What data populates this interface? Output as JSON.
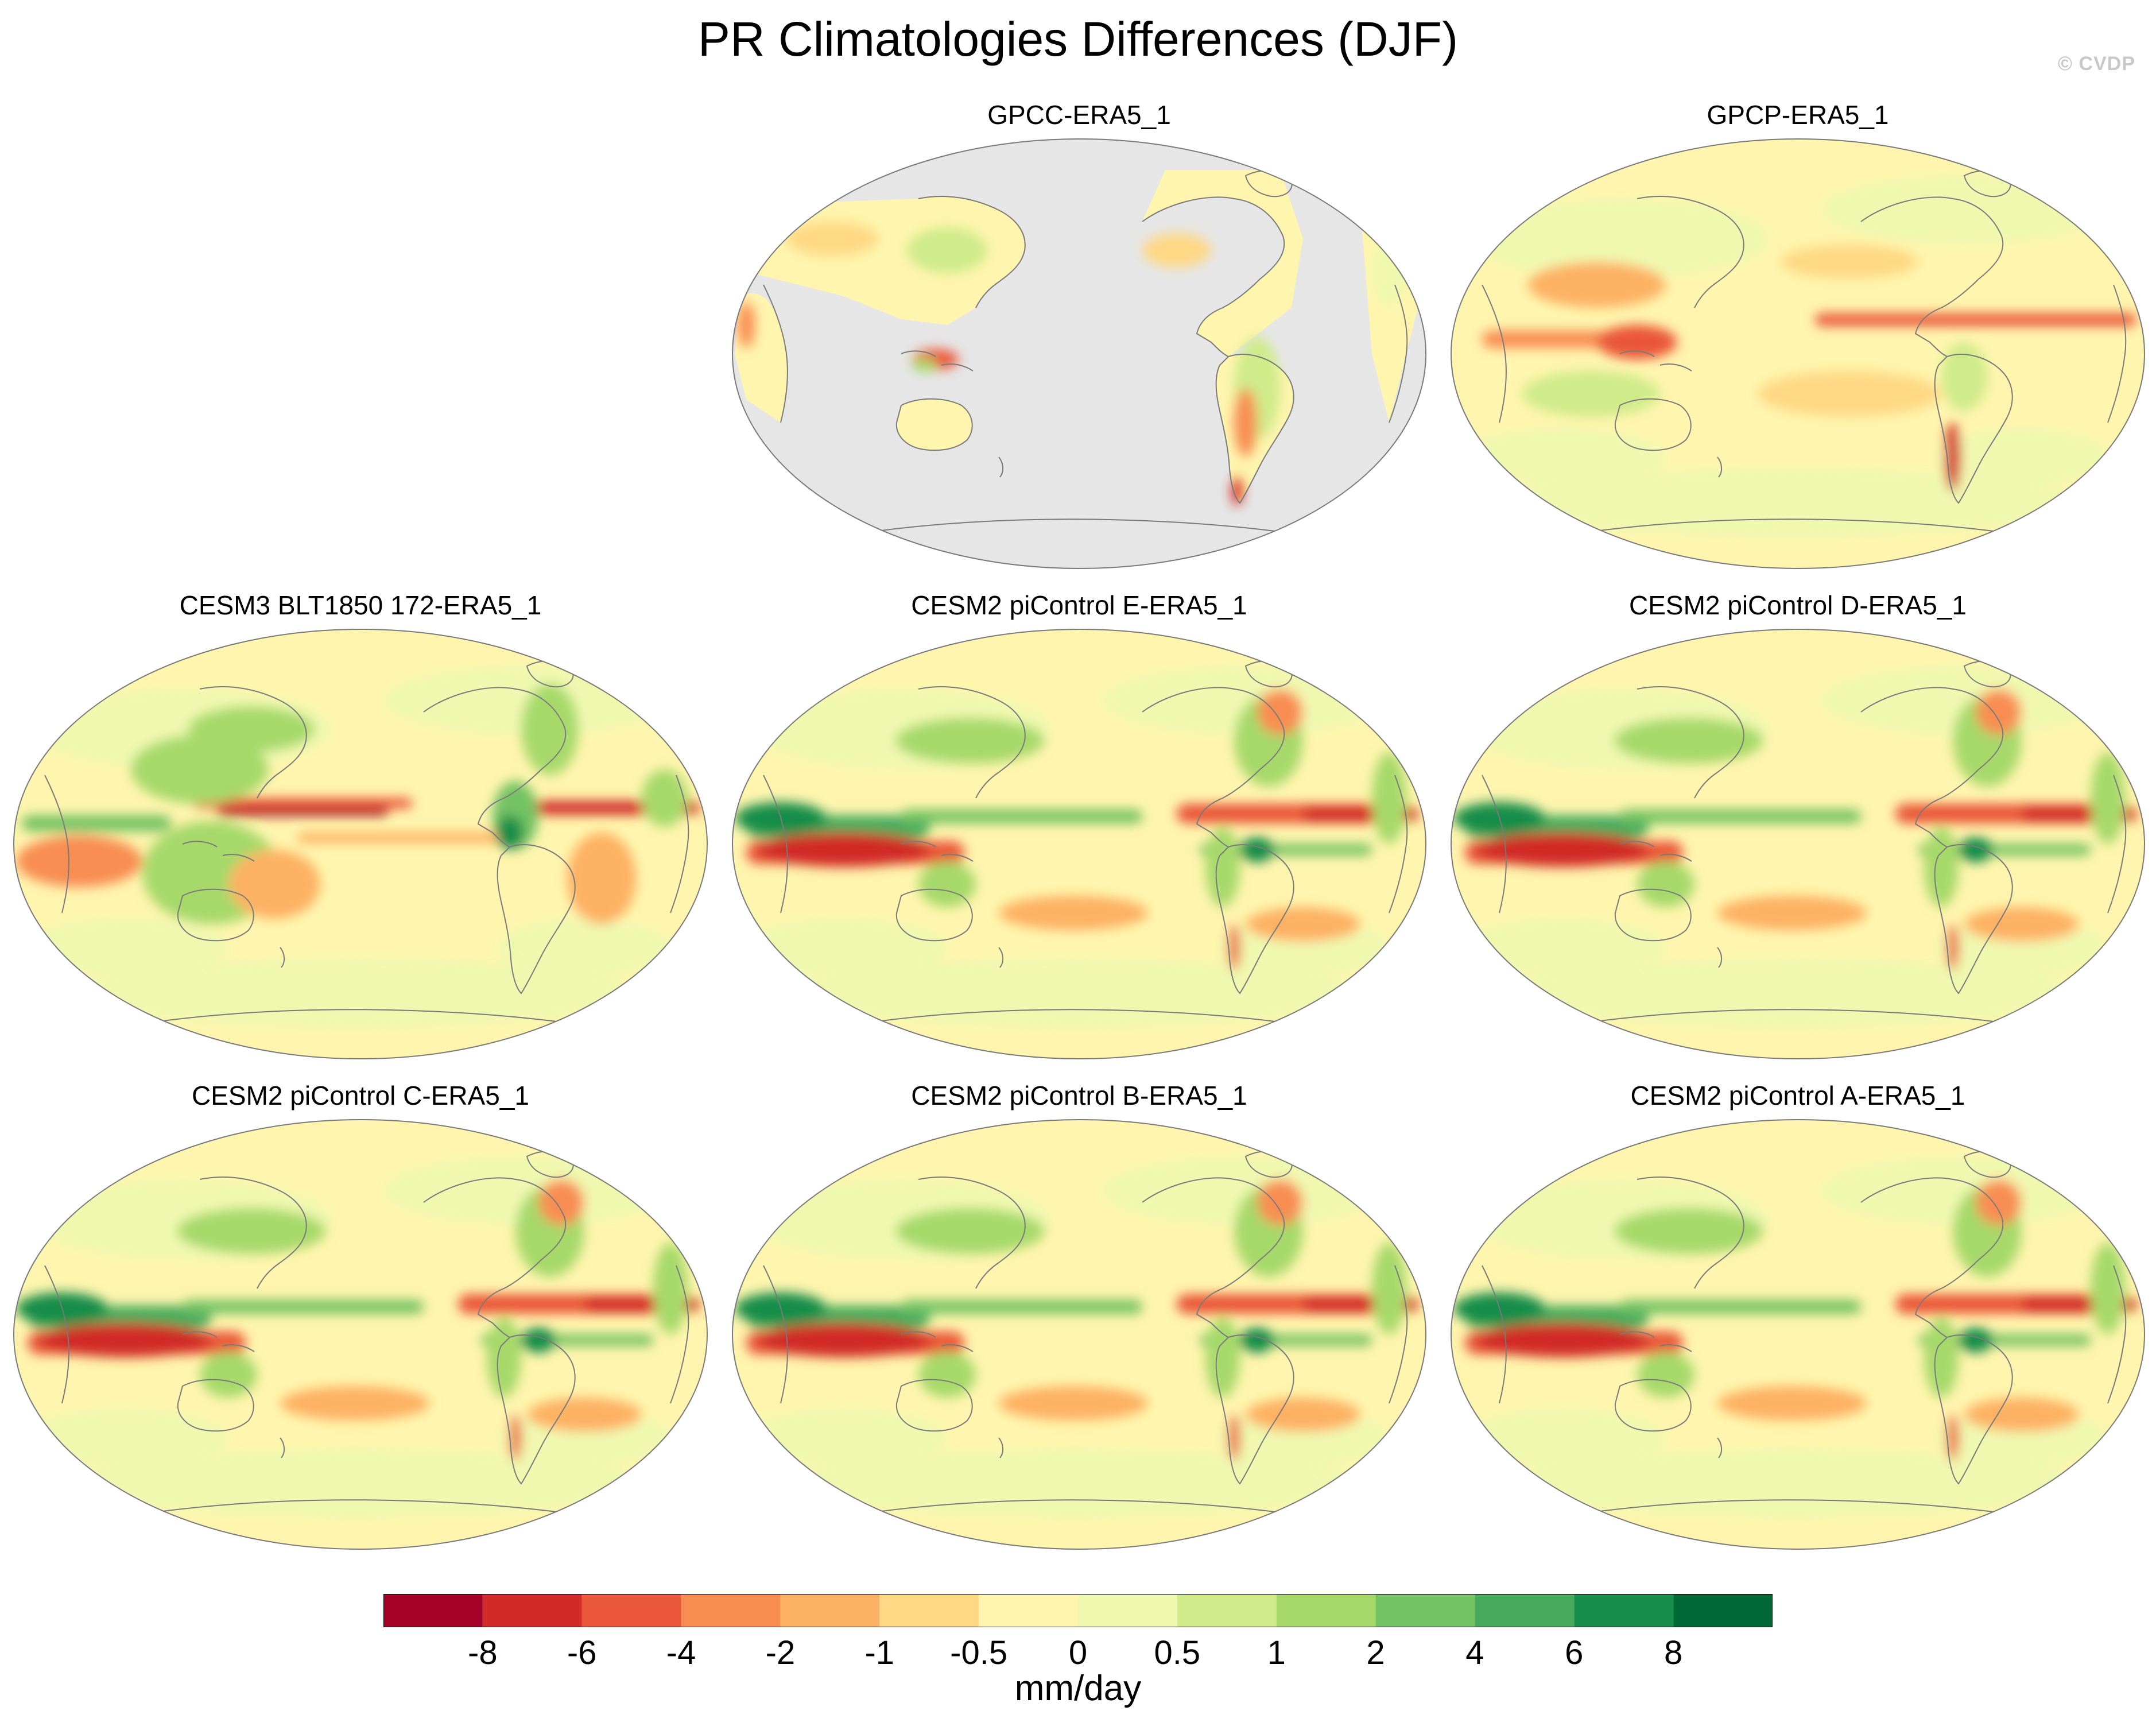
{
  "title": "PR Climatologies Differences (DJF)",
  "credit": "© CVDP",
  "colors": {
    "sea_nodata": "#e6e6e6",
    "coast": "#7a7a7a",
    "frame": "#7a7a7a",
    "neutral_plus": "#eaf4a6",
    "neutral_minus": "#fef0a8"
  },
  "panels": [
    {
      "id": "gpcc",
      "title": "GPCC-ERA5_1",
      "type": "land_only"
    },
    {
      "id": "gpcp",
      "title": "GPCP-ERA5_1",
      "type": "obs"
    },
    {
      "id": "cesm3",
      "title": "CESM3 BLT1850 172-ERA5_1",
      "type": "model_cesm3"
    },
    {
      "id": "cesm2e",
      "title": "CESM2 piControl E-ERA5_1",
      "type": "model"
    },
    {
      "id": "cesm2d",
      "title": "CESM2 piControl D-ERA5_1",
      "type": "model"
    },
    {
      "id": "cesm2c",
      "title": "CESM2 piControl C-ERA5_1",
      "type": "model"
    },
    {
      "id": "cesm2b",
      "title": "CESM2 piControl B-ERA5_1",
      "type": "model"
    },
    {
      "id": "cesm2a",
      "title": "CESM2 piControl A-ERA5_1",
      "type": "model"
    }
  ],
  "colorbar": {
    "colors": [
      "#a50026",
      "#d22b27",
      "#ea5739",
      "#f88d52",
      "#fdb163",
      "#fed884",
      "#fff5ae",
      "#f0f8b0",
      "#cfeb8a",
      "#a6d96a",
      "#73c264",
      "#45ab5b",
      "#148e4a",
      "#006837"
    ],
    "ticks": [
      "-8",
      "-6",
      "-4",
      "-2",
      "-1",
      "-0.5",
      "0",
      "0.5",
      "1",
      "2",
      "4",
      "6",
      "8"
    ],
    "units": "mm/day"
  }
}
